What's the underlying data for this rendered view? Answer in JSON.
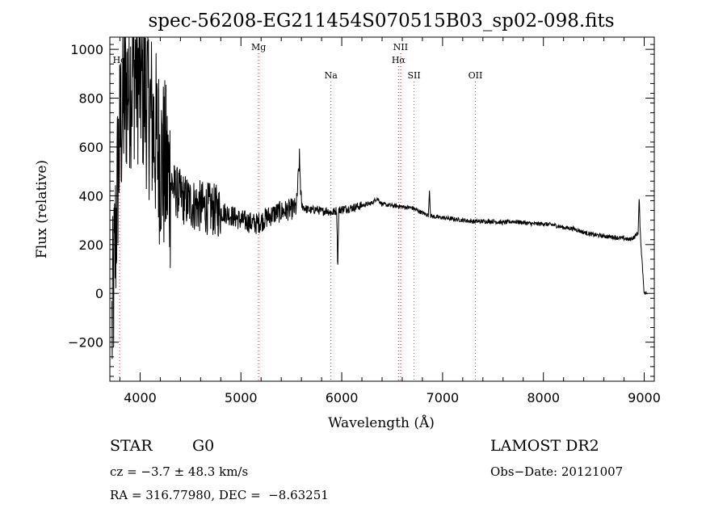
{
  "chart_data": {
    "type": "line",
    "title": "spec-56208-EG211454S070515B03_sp02-098.fits",
    "xlabel": "Wavelength (Å)",
    "ylabel": "Flux (relative)",
    "xlim": [
      3700,
      9100
    ],
    "ylim": [
      -360,
      1050
    ],
    "xticks": [
      4000,
      5000,
      6000,
      7000,
      8000,
      9000
    ],
    "xtick_labels": [
      "4000",
      "5000",
      "6000",
      "7000",
      "8000",
      "9000"
    ],
    "yticks": [
      -200,
      0,
      200,
      400,
      600,
      800,
      1000
    ],
    "ytick_labels": [
      "−200",
      "0",
      "200",
      "400",
      "600",
      "800",
      "1000"
    ],
    "grid": false,
    "lines": [
      {
        "label": "Hα",
        "wavelength": 3797,
        "row": 1
      },
      {
        "label": "Mg",
        "wavelength": 5175,
        "row": 0
      },
      {
        "label": "Na",
        "wavelength": 5893,
        "row": 2
      },
      {
        "label": "NII",
        "wavelength": 6584,
        "row": 0
      },
      {
        "label": "Hα",
        "wavelength": 6563,
        "row": 1
      },
      {
        "label": "SII",
        "wavelength": 6717,
        "row": 2
      },
      {
        "label": "OII",
        "wavelength": 7325,
        "row": 2
      }
    ],
    "spectrum": {
      "x": [
        3720,
        3750,
        3780,
        3810,
        3850,
        3900,
        3950,
        4000,
        4050,
        4100,
        4150,
        4200,
        4250,
        4300,
        4350,
        4400,
        4450,
        4500,
        4550,
        4600,
        4650,
        4700,
        4750,
        4800,
        4850,
        4900,
        4950,
        5000,
        5050,
        5100,
        5150,
        5200,
        5250,
        5300,
        5350,
        5400,
        5450,
        5500,
        5550,
        5580,
        5600,
        5650,
        5700,
        5750,
        5800,
        5850,
        5900,
        5950,
        5960,
        5970,
        6000,
        6100,
        6200,
        6300,
        6350,
        6400,
        6500,
        6600,
        6700,
        6800,
        6860,
        6870,
        6880,
        6900,
        7000,
        7100,
        7200,
        7300,
        7400,
        7500,
        7600,
        7700,
        7800,
        7900,
        8000,
        8100,
        8200,
        8300,
        8400,
        8500,
        8600,
        8700,
        8800,
        8850,
        8900,
        8920,
        8940,
        8950,
        8960,
        9000,
        9030
      ],
      "y": [
        -150,
        150,
        500,
        700,
        820,
        880,
        920,
        880,
        820,
        740,
        640,
        560,
        500,
        460,
        420,
        400,
        380,
        370,
        360,
        355,
        350,
        345,
        340,
        335,
        330,
        320,
        310,
        300,
        295,
        290,
        285,
        295,
        310,
        320,
        330,
        335,
        340,
        345,
        350,
        550,
        360,
        345,
        340,
        345,
        335,
        340,
        330,
        340,
        100,
        340,
        345,
        350,
        360,
        370,
        390,
        365,
        360,
        355,
        350,
        330,
        320,
        430,
        320,
        315,
        310,
        305,
        300,
        295,
        295,
        295,
        290,
        295,
        290,
        285,
        285,
        280,
        270,
        265,
        250,
        240,
        235,
        230,
        225,
        220,
        230,
        240,
        250,
        400,
        250,
        0,
        0
      ]
    }
  },
  "info": {
    "object_class": "STAR",
    "subclass": "G0",
    "survey": "LAMOST DR2",
    "velocity": "cz = −3.7 ± 48.3 km/s",
    "obs_date": "Obs−Date: 20121007",
    "coords": "RA = 316.77980, DEC =  −8.63251"
  }
}
